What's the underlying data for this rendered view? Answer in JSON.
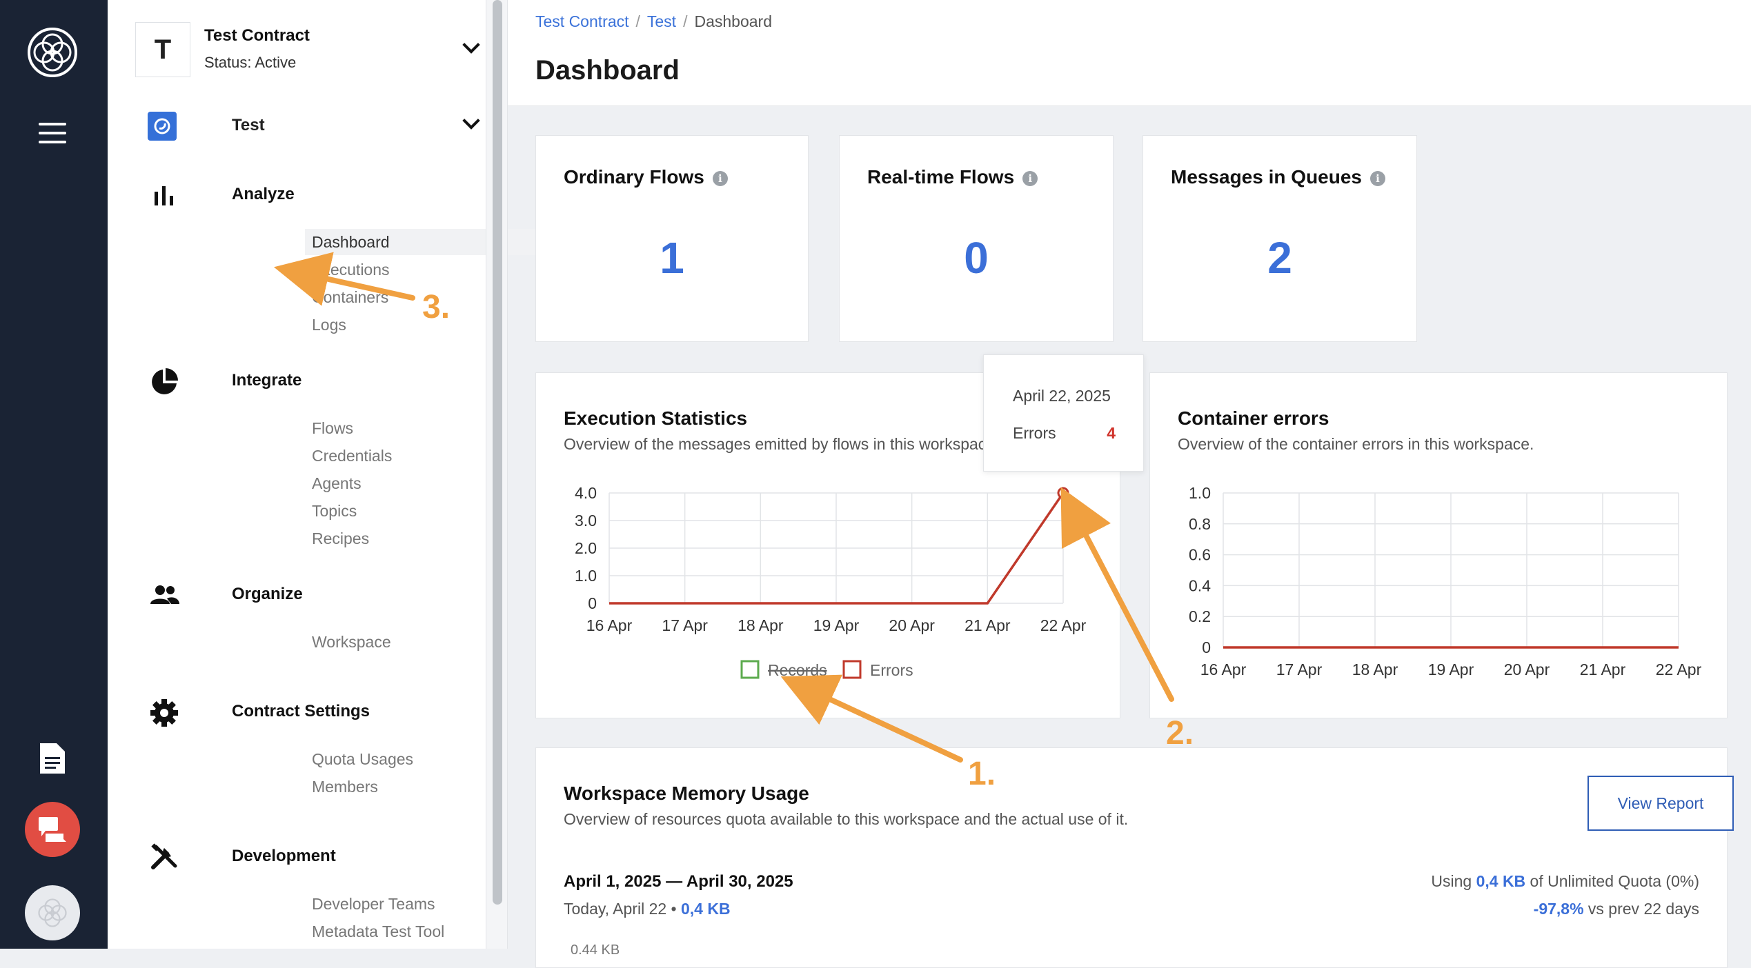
{
  "contract": {
    "initial": "T",
    "name": "Test Contract",
    "status": "Status: Active"
  },
  "workspace": {
    "name": "Test"
  },
  "nav": {
    "analyze": {
      "label": "Analyze",
      "items": [
        "Dashboard",
        "Executions",
        "Containers",
        "Logs"
      ]
    },
    "integrate": {
      "label": "Integrate",
      "items": [
        "Flows",
        "Credentials",
        "Agents",
        "Topics",
        "Recipes"
      ]
    },
    "organize": {
      "label": "Organize",
      "items": [
        "Workspace"
      ]
    },
    "contract_settings": {
      "label": "Contract Settings",
      "items": [
        "Quota Usages",
        "Members"
      ]
    },
    "development": {
      "label": "Development",
      "items": [
        "Developer Teams",
        "Metadata Test Tool"
      ]
    }
  },
  "breadcrumb": [
    "Test Contract",
    "Test",
    "Dashboard"
  ],
  "page_title": "Dashboard",
  "stats": [
    {
      "label": "Ordinary Flows",
      "value": "1"
    },
    {
      "label": "Real-time Flows",
      "value": "0"
    },
    {
      "label": "Messages in Queues",
      "value": "2"
    }
  ],
  "execution_stats": {
    "title": "Execution Statistics",
    "subtitle": "Overview of the messages emitted by flows in this workspace.",
    "legend": [
      "Records",
      "Errors"
    ]
  },
  "container_errors": {
    "title": "Container errors",
    "subtitle": "Overview of the container errors in this workspace."
  },
  "tooltip": {
    "date": "April 22, 2025",
    "key": "Errors",
    "value": "4"
  },
  "memory": {
    "title": "Workspace Memory Usage",
    "subtitle": "Overview of resources quota available to this workspace and the actual use of it.",
    "button": "View Report",
    "range": "April 1, 2025 — April 30, 2025",
    "today_prefix": "Today, April 22 • ",
    "today_value": "0,4 KB",
    "using_prefix": "Using ",
    "using_value": "0,4 KB",
    "using_suffix": " of Unlimited Quota (0%)",
    "vs_value": "-97,8%",
    "vs_suffix": " vs prev 22 days",
    "cut_label": "0.44 KB"
  },
  "annotations": [
    "1.",
    "2.",
    "3."
  ],
  "colors": {
    "accent": "#3b6fd8",
    "errors": "#c0392b",
    "records": "#5cab4e",
    "arrow": "#f0a040",
    "rail": "#1a2334"
  },
  "chart_data": [
    {
      "type": "line",
      "title": "Execution Statistics",
      "x": [
        "16 Apr",
        "17 Apr",
        "18 Apr",
        "19 Apr",
        "20 Apr",
        "21 Apr",
        "22 Apr"
      ],
      "ylim": [
        0,
        4
      ],
      "yticks": [
        "0",
        "1.0",
        "2.0",
        "3.0",
        "4.0"
      ],
      "legend_position": "bottom",
      "grid": true,
      "series": [
        {
          "name": "Records",
          "values": [
            0,
            0,
            0,
            0,
            0,
            0,
            0
          ],
          "hidden": true
        },
        {
          "name": "Errors",
          "values": [
            0,
            0,
            0,
            0,
            0,
            0,
            4
          ]
        }
      ]
    },
    {
      "type": "line",
      "title": "Container errors",
      "x": [
        "16 Apr",
        "17 Apr",
        "18 Apr",
        "19 Apr",
        "20 Apr",
        "21 Apr",
        "22 Apr"
      ],
      "ylim": [
        0,
        1
      ],
      "yticks": [
        "0",
        "0.2",
        "0.4",
        "0.6",
        "0.8",
        "1.0"
      ],
      "grid": true,
      "series": [
        {
          "values": [
            0,
            0,
            0,
            0,
            0,
            0,
            0
          ]
        }
      ]
    }
  ]
}
